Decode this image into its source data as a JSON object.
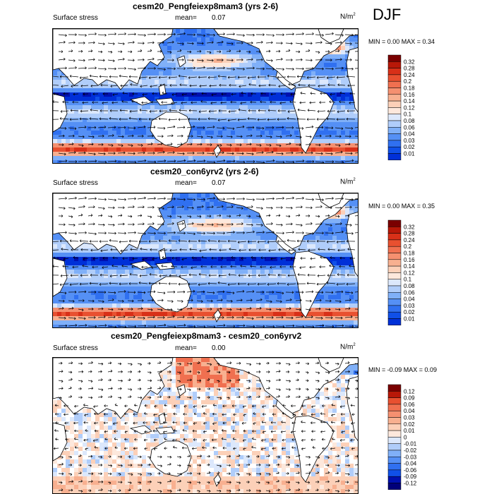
{
  "season": "DJF",
  "colors": {
    "bottom": [
      "#00007a",
      "#0010b0",
      "#0030d8",
      "#1050e8",
      "#3070f0",
      "#5590f5",
      "#80b0f8",
      "#b0cdfa",
      "#dce8fc"
    ],
    "top": [
      "#fde8dc",
      "#fcd0b8",
      "#f8b090",
      "#f59070",
      "#f07050",
      "#e85030",
      "#d83018",
      "#b81808",
      "#7a0000"
    ],
    "land": "#ffffff"
  },
  "panels": [
    {
      "title": "cesm20_Pengfeiexp8mam3 (yrs 2-6)",
      "left_label": "Surface stress",
      "mean_label": "mean=",
      "mean_value": "0.07",
      "units": "N/m",
      "units_sup": "2",
      "minmax": "MIN =   0.00 MAX =   0.34",
      "colorbar_labels": [
        "0.32",
        "0.28",
        "0.24",
        "0.2",
        "0.18",
        "0.16",
        "0.14",
        "0.12",
        "0.1",
        "0.08",
        "0.06",
        "0.04",
        "0.03",
        "0.02",
        "0.01"
      ]
    },
    {
      "title": "cesm20_con6yrv2 (yrs 2-6)",
      "left_label": "Surface stress",
      "mean_label": "mean=",
      "mean_value": "0.07",
      "units": "N/m",
      "units_sup": "2",
      "minmax": "MIN =   0.00 MAX =   0.35",
      "colorbar_labels": [
        "0.32",
        "0.28",
        "0.24",
        "0.2",
        "0.18",
        "0.16",
        "0.14",
        "0.12",
        "0.1",
        "0.08",
        "0.06",
        "0.04",
        "0.03",
        "0.02",
        "0.01"
      ]
    },
    {
      "title": "cesm20_Pengfeiexp8mam3 - cesm20_con6yrv2",
      "left_label": "Surface stress",
      "mean_label": "mean=",
      "mean_value": "0.00",
      "units": "N/m",
      "units_sup": "2",
      "minmax": "MIN =  -0.09 MAX =   0.09",
      "colorbar_labels": [
        "0.12",
        "0.09",
        "0.06",
        "0.04",
        "0.03",
        "0.02",
        "0.01",
        "0",
        "-0.01",
        "-0.02",
        "-0.03",
        "-0.04",
        "-0.06",
        "-0.09",
        "-0.12"
      ]
    }
  ]
}
